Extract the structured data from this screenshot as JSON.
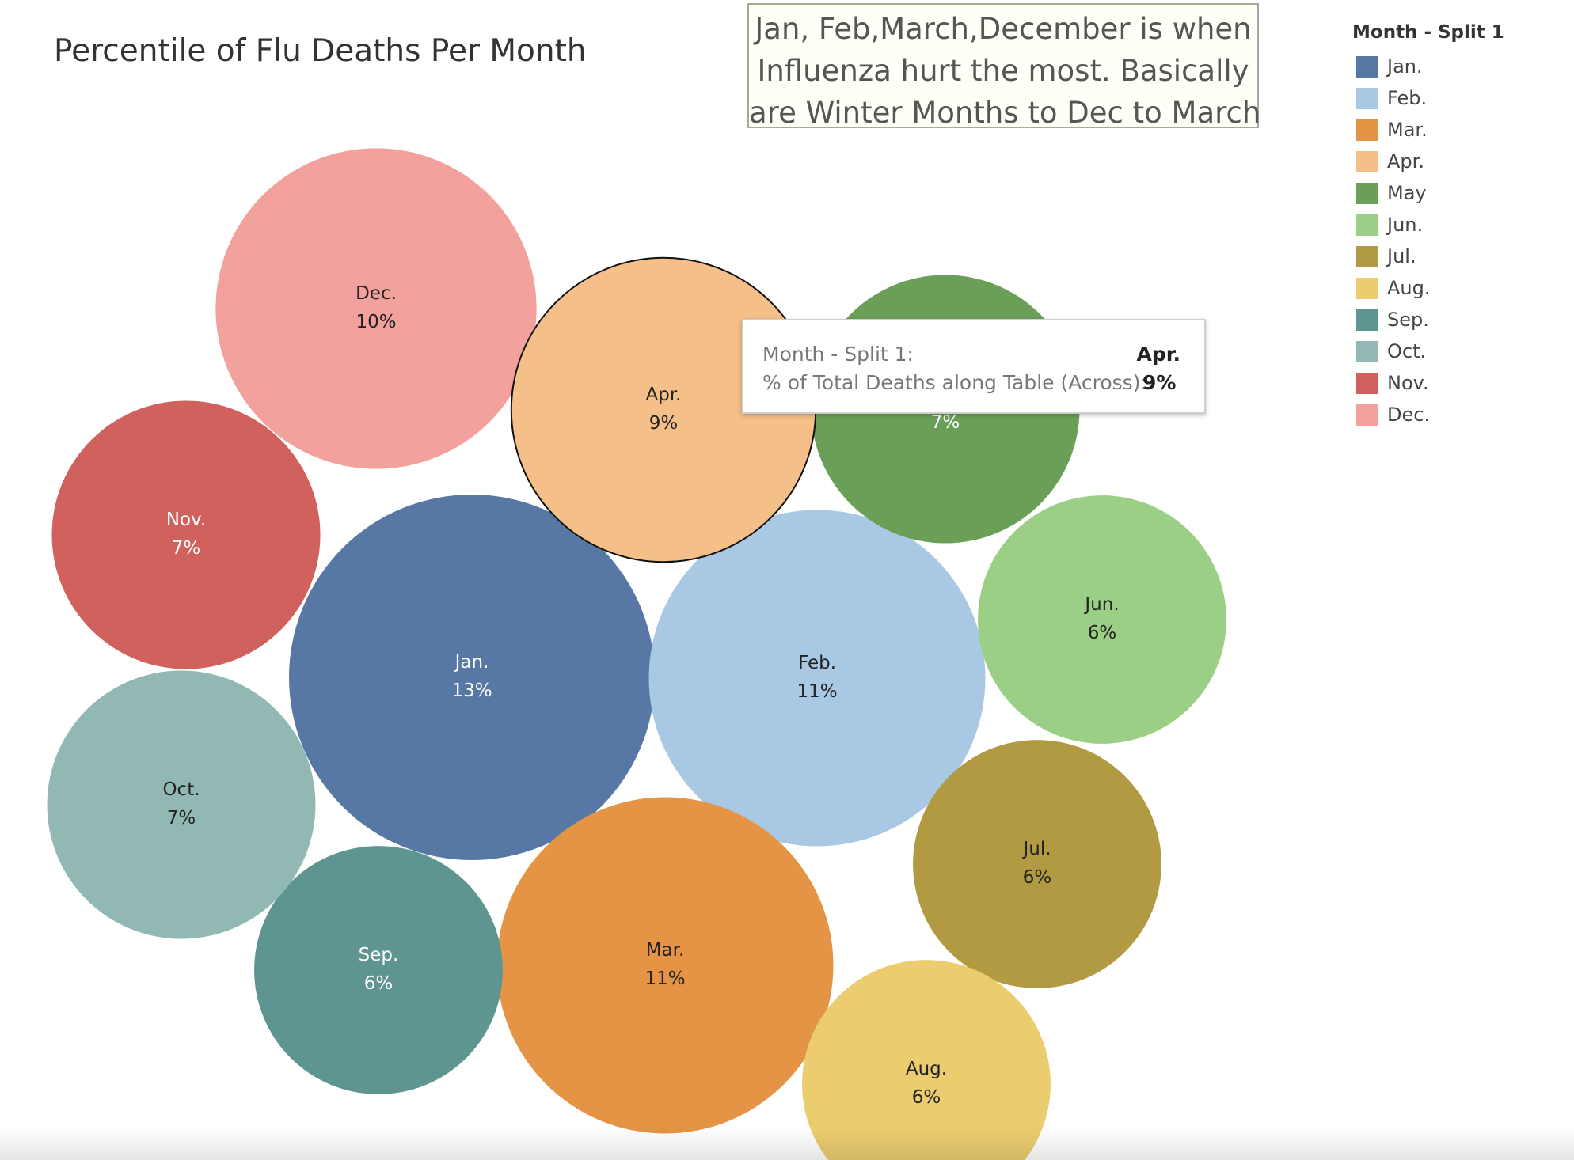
{
  "title": "Percentile of Flu Deaths Per Month",
  "annotation": {
    "lines": [
      "Jan, Feb,March,December is when",
      "Influenza hurt the most. Basically",
      "are Winter Months to Dec to March"
    ]
  },
  "legend": {
    "title": "Month - Split 1",
    "items": [
      {
        "label": "Jan.",
        "color": "#5778a4"
      },
      {
        "label": "Feb.",
        "color": "#a8c8e4"
      },
      {
        "label": "Mar.",
        "color": "#e49444"
      },
      {
        "label": "Apr.",
        "color": "#f4bf88"
      },
      {
        "label": "May",
        "color": "#6a9f58"
      },
      {
        "label": "Jun.",
        "color": "#9ccf86"
      },
      {
        "label": "Jul.",
        "color": "#b29a43"
      },
      {
        "label": "Aug.",
        "color": "#ebcd70"
      },
      {
        "label": "Sep.",
        "color": "#5e9590"
      },
      {
        "label": "Oct.",
        "color": "#92b8b3"
      },
      {
        "label": "Nov.",
        "color": "#d1615d"
      },
      {
        "label": "Dec.",
        "color": "#f2a19c"
      }
    ]
  },
  "tooltip": {
    "row1_key": "Month - Split 1:",
    "row1_value": "Apr.",
    "row2_key": "% of Total Deaths along Table (Across):",
    "row2_value": "9%"
  },
  "chart_data": {
    "type": "bubble",
    "title": "Percentile of Flu Deaths Per Month",
    "legend_title": "Month - Split 1",
    "legend_position": "right",
    "categories": [
      "Jan.",
      "Feb.",
      "Mar.",
      "Apr.",
      "May",
      "Jun.",
      "Jul.",
      "Aug.",
      "Sep.",
      "Oct.",
      "Nov.",
      "Dec."
    ],
    "values": [
      13,
      11,
      11,
      9,
      7,
      6,
      6,
      6,
      6,
      7,
      7,
      10
    ],
    "value_labels": [
      "13%",
      "11%",
      "11%",
      "9%",
      "7%",
      "6%",
      "6%",
      "6%",
      "6%",
      "7%",
      "7%",
      "10%"
    ],
    "highlighted": "Apr."
  }
}
